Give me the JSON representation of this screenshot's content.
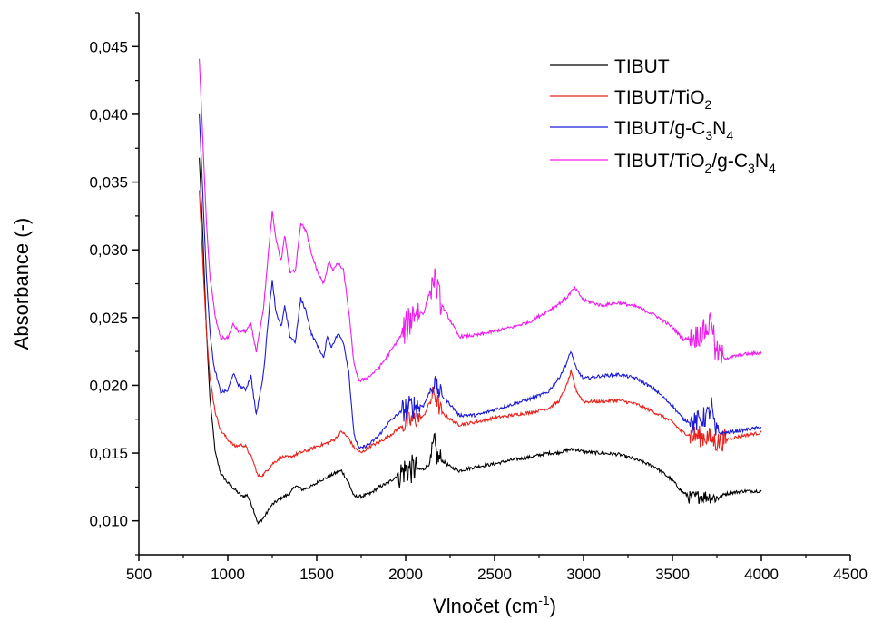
{
  "chart_data": {
    "type": "line",
    "xlabel": "Vlnočet (cm",
    "xlabel_sup": "-1",
    "xlabel_end": ")",
    "ylabel": "Absorbance (-)",
    "xlim": [
      500,
      4500
    ],
    "ylim": [
      0.0075,
      0.0475
    ],
    "x_ticks": [
      500,
      1000,
      1500,
      2000,
      2500,
      3000,
      3500,
      4000,
      4500
    ],
    "x_tick_labels": [
      "500",
      "1000",
      "1500",
      "2000",
      "2500",
      "3000",
      "3500",
      "4000",
      "4500"
    ],
    "y_ticks": [
      0.01,
      0.015,
      0.02,
      0.025,
      0.03,
      0.035,
      0.04,
      0.045
    ],
    "y_tick_labels": [
      "0,010",
      "0,015",
      "0,020",
      "0,025",
      "0,030",
      "0,035",
      "0,040",
      "0,045"
    ],
    "grid": false,
    "legend_position": "top-right",
    "legend": [
      {
        "parts": [
          {
            "t": "TIBUT"
          }
        ]
      },
      {
        "parts": [
          {
            "t": "TIBUT/TiO"
          },
          {
            "t": "2",
            "sub": true
          }
        ]
      },
      {
        "parts": [
          {
            "t": "TIBUT/g-C"
          },
          {
            "t": "3",
            "sub": true
          },
          {
            "t": "N"
          },
          {
            "t": "4",
            "sub": true
          }
        ]
      },
      {
        "parts": [
          {
            "t": "TIBUT/TiO"
          },
          {
            "t": "2",
            "sub": true
          },
          {
            "t": "/g-C"
          },
          {
            "t": "3",
            "sub": true
          },
          {
            "t": "N"
          },
          {
            "t": "4",
            "sub": true
          }
        ]
      }
    ],
    "series": [
      {
        "color": "#000000",
        "noise": 0.00012,
        "points": [
          [
            840,
            0.0368
          ],
          [
            860,
            0.031
          ],
          [
            880,
            0.024
          ],
          [
            900,
            0.019
          ],
          [
            930,
            0.015
          ],
          [
            960,
            0.0135
          ],
          [
            1000,
            0.0128
          ],
          [
            1040,
            0.0123
          ],
          [
            1080,
            0.0118
          ],
          [
            1110,
            0.0119
          ],
          [
            1140,
            0.011
          ],
          [
            1170,
            0.0098
          ],
          [
            1200,
            0.0102
          ],
          [
            1250,
            0.0112
          ],
          [
            1300,
            0.0117
          ],
          [
            1350,
            0.012
          ],
          [
            1380,
            0.0126
          ],
          [
            1420,
            0.0123
          ],
          [
            1480,
            0.0126
          ],
          [
            1520,
            0.013
          ],
          [
            1560,
            0.0132
          ],
          [
            1600,
            0.0135
          ],
          [
            1640,
            0.0137
          ],
          [
            1680,
            0.0128
          ],
          [
            1710,
            0.0118
          ],
          [
            1750,
            0.0118
          ],
          [
            1800,
            0.012
          ],
          [
            1850,
            0.0125
          ],
          [
            1900,
            0.0128
          ],
          [
            1950,
            0.0133
          ],
          [
            2000,
            0.0138
          ],
          [
            2050,
            0.0138
          ],
          [
            2100,
            0.0138
          ],
          [
            2140,
            0.0143
          ],
          [
            2160,
            0.0158
          ],
          [
            2180,
            0.0146
          ],
          [
            2200,
            0.0145
          ],
          [
            2250,
            0.014
          ],
          [
            2300,
            0.0137
          ],
          [
            2400,
            0.014
          ],
          [
            2500,
            0.0142
          ],
          [
            2600,
            0.0145
          ],
          [
            2700,
            0.0147
          ],
          [
            2800,
            0.015
          ],
          [
            2850,
            0.015
          ],
          [
            2900,
            0.0152
          ],
          [
            2950,
            0.0153
          ],
          [
            3000,
            0.0151
          ],
          [
            3100,
            0.015
          ],
          [
            3200,
            0.0149
          ],
          [
            3300,
            0.0145
          ],
          [
            3400,
            0.014
          ],
          [
            3500,
            0.013
          ],
          [
            3550,
            0.0122
          ],
          [
            3600,
            0.0117
          ],
          [
            3650,
            0.0118
          ],
          [
            3700,
            0.0118
          ],
          [
            3750,
            0.0117
          ],
          [
            3800,
            0.012
          ],
          [
            3900,
            0.0122
          ],
          [
            4000,
            0.0122
          ]
        ],
        "spikes": [
          [
            1960,
            2060,
            0.0011
          ],
          [
            2140,
            2200,
            0.0009
          ],
          [
            3580,
            3760,
            0.0005
          ]
        ]
      },
      {
        "color": "#e8211b",
        "noise": 0.00012,
        "points": [
          [
            840,
            0.0344
          ],
          [
            860,
            0.029
          ],
          [
            880,
            0.024
          ],
          [
            900,
            0.0205
          ],
          [
            930,
            0.018
          ],
          [
            960,
            0.0167
          ],
          [
            1000,
            0.016
          ],
          [
            1040,
            0.0155
          ],
          [
            1080,
            0.0156
          ],
          [
            1100,
            0.0155
          ],
          [
            1140,
            0.0145
          ],
          [
            1170,
            0.0133
          ],
          [
            1200,
            0.0134
          ],
          [
            1250,
            0.0142
          ],
          [
            1300,
            0.0147
          ],
          [
            1350,
            0.0147
          ],
          [
            1400,
            0.015
          ],
          [
            1450,
            0.0152
          ],
          [
            1500,
            0.0155
          ],
          [
            1550,
            0.0157
          ],
          [
            1600,
            0.016
          ],
          [
            1640,
            0.0166
          ],
          [
            1680,
            0.0161
          ],
          [
            1710,
            0.0154
          ],
          [
            1750,
            0.015
          ],
          [
            1800,
            0.0155
          ],
          [
            1850,
            0.0158
          ],
          [
            1900,
            0.0162
          ],
          [
            1950,
            0.0167
          ],
          [
            2000,
            0.0172
          ],
          [
            2050,
            0.0175
          ],
          [
            2100,
            0.0177
          ],
          [
            2160,
            0.0195
          ],
          [
            2200,
            0.018
          ],
          [
            2250,
            0.0175
          ],
          [
            2300,
            0.0171
          ],
          [
            2400,
            0.0173
          ],
          [
            2500,
            0.0176
          ],
          [
            2600,
            0.0178
          ],
          [
            2700,
            0.018
          ],
          [
            2800,
            0.0183
          ],
          [
            2860,
            0.0188
          ],
          [
            2900,
            0.0198
          ],
          [
            2930,
            0.021
          ],
          [
            2960,
            0.0196
          ],
          [
            3000,
            0.0188
          ],
          [
            3100,
            0.0188
          ],
          [
            3200,
            0.0189
          ],
          [
            3300,
            0.0186
          ],
          [
            3400,
            0.018
          ],
          [
            3500,
            0.0173
          ],
          [
            3550,
            0.0166
          ],
          [
            3600,
            0.0163
          ],
          [
            3700,
            0.0162
          ],
          [
            3750,
            0.0158
          ],
          [
            3800,
            0.016
          ],
          [
            3900,
            0.0163
          ],
          [
            4000,
            0.0165
          ]
        ],
        "spikes": [
          [
            1980,
            2080,
            0.0008
          ],
          [
            2140,
            2200,
            0.0007
          ],
          [
            3600,
            3800,
            0.0008
          ]
        ]
      },
      {
        "color": "#1c1ad6",
        "noise": 0.00012,
        "points": [
          [
            840,
            0.04
          ],
          [
            860,
            0.034
          ],
          [
            880,
            0.028
          ],
          [
            900,
            0.024
          ],
          [
            920,
            0.0215
          ],
          [
            940,
            0.0205
          ],
          [
            960,
            0.0195
          ],
          [
            1000,
            0.0196
          ],
          [
            1030,
            0.0209
          ],
          [
            1060,
            0.02
          ],
          [
            1100,
            0.0197
          ],
          [
            1130,
            0.0207
          ],
          [
            1160,
            0.0178
          ],
          [
            1200,
            0.0208
          ],
          [
            1230,
            0.0252
          ],
          [
            1250,
            0.0278
          ],
          [
            1270,
            0.0255
          ],
          [
            1300,
            0.0243
          ],
          [
            1320,
            0.0258
          ],
          [
            1350,
            0.0236
          ],
          [
            1380,
            0.0232
          ],
          [
            1410,
            0.0264
          ],
          [
            1440,
            0.0255
          ],
          [
            1470,
            0.0238
          ],
          [
            1510,
            0.0228
          ],
          [
            1540,
            0.022
          ],
          [
            1560,
            0.0237
          ],
          [
            1580,
            0.0228
          ],
          [
            1620,
            0.0238
          ],
          [
            1650,
            0.0232
          ],
          [
            1680,
            0.021
          ],
          [
            1710,
            0.0163
          ],
          [
            1740,
            0.0153
          ],
          [
            1800,
            0.0157
          ],
          [
            1850,
            0.0163
          ],
          [
            1900,
            0.0172
          ],
          [
            1950,
            0.0178
          ],
          [
            2000,
            0.0183
          ],
          [
            2050,
            0.0185
          ],
          [
            2100,
            0.0185
          ],
          [
            2160,
            0.0202
          ],
          [
            2200,
            0.0193
          ],
          [
            2250,
            0.0186
          ],
          [
            2300,
            0.0178
          ],
          [
            2400,
            0.0178
          ],
          [
            2500,
            0.0182
          ],
          [
            2600,
            0.0186
          ],
          [
            2700,
            0.019
          ],
          [
            2800,
            0.0195
          ],
          [
            2860,
            0.0205
          ],
          [
            2900,
            0.0215
          ],
          [
            2930,
            0.0225
          ],
          [
            2960,
            0.0212
          ],
          [
            3000,
            0.0205
          ],
          [
            3100,
            0.0207
          ],
          [
            3200,
            0.0208
          ],
          [
            3300,
            0.0205
          ],
          [
            3400,
            0.0197
          ],
          [
            3500,
            0.0185
          ],
          [
            3560,
            0.0175
          ],
          [
            3620,
            0.0172
          ],
          [
            3700,
            0.0178
          ],
          [
            3720,
            0.0185
          ],
          [
            3740,
            0.0165
          ],
          [
            3800,
            0.0165
          ],
          [
            3900,
            0.0167
          ],
          [
            4000,
            0.0169
          ]
        ],
        "spikes": [
          [
            1980,
            2080,
            0.0009
          ],
          [
            2140,
            2200,
            0.0007
          ],
          [
            3600,
            3760,
            0.0008
          ]
        ]
      },
      {
        "color": "#ee1cee",
        "noise": 0.00012,
        "points": [
          [
            840,
            0.0441
          ],
          [
            860,
            0.038
          ],
          [
            880,
            0.032
          ],
          [
            900,
            0.028
          ],
          [
            930,
            0.025
          ],
          [
            960,
            0.0235
          ],
          [
            1000,
            0.0235
          ],
          [
            1030,
            0.0245
          ],
          [
            1060,
            0.024
          ],
          [
            1100,
            0.024
          ],
          [
            1130,
            0.0245
          ],
          [
            1160,
            0.0225
          ],
          [
            1200,
            0.0255
          ],
          [
            1230,
            0.03
          ],
          [
            1250,
            0.0328
          ],
          [
            1270,
            0.0308
          ],
          [
            1300,
            0.0292
          ],
          [
            1320,
            0.0311
          ],
          [
            1350,
            0.0283
          ],
          [
            1380,
            0.0285
          ],
          [
            1410,
            0.032
          ],
          [
            1440,
            0.0314
          ],
          [
            1470,
            0.0297
          ],
          [
            1510,
            0.0282
          ],
          [
            1540,
            0.0275
          ],
          [
            1570,
            0.0292
          ],
          [
            1590,
            0.0285
          ],
          [
            1620,
            0.029
          ],
          [
            1650,
            0.0285
          ],
          [
            1680,
            0.0255
          ],
          [
            1710,
            0.0215
          ],
          [
            1740,
            0.0203
          ],
          [
            1800,
            0.0207
          ],
          [
            1850,
            0.0213
          ],
          [
            1900,
            0.0222
          ],
          [
            1950,
            0.0232
          ],
          [
            2000,
            0.0242
          ],
          [
            2050,
            0.0255
          ],
          [
            2100,
            0.0253
          ],
          [
            2160,
            0.028
          ],
          [
            2200,
            0.026
          ],
          [
            2250,
            0.0248
          ],
          [
            2300,
            0.0236
          ],
          [
            2400,
            0.0237
          ],
          [
            2500,
            0.024
          ],
          [
            2600,
            0.0243
          ],
          [
            2700,
            0.0247
          ],
          [
            2800,
            0.0255
          ],
          [
            2860,
            0.026
          ],
          [
            2900,
            0.0264
          ],
          [
            2950,
            0.0272
          ],
          [
            3000,
            0.0263
          ],
          [
            3100,
            0.0259
          ],
          [
            3200,
            0.0261
          ],
          [
            3300,
            0.0258
          ],
          [
            3400,
            0.0252
          ],
          [
            3500,
            0.0243
          ],
          [
            3560,
            0.0234
          ],
          [
            3620,
            0.0235
          ],
          [
            3700,
            0.0242
          ],
          [
            3720,
            0.0252
          ],
          [
            3740,
            0.0225
          ],
          [
            3800,
            0.022
          ],
          [
            3900,
            0.0223
          ],
          [
            4000,
            0.0224
          ]
        ],
        "spikes": [
          [
            1980,
            2080,
            0.0012
          ],
          [
            2140,
            2200,
            0.001
          ],
          [
            3600,
            3780,
            0.0009
          ]
        ]
      }
    ]
  }
}
